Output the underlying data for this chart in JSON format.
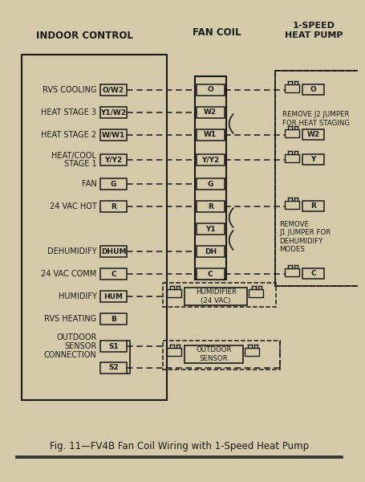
{
  "title": "Fig. 11—FV4B Fan Coil Wiring with 1-Speed Heat Pump",
  "header_indoor": "INDOOR CONTROL",
  "header_fan": "FAN COIL",
  "header_hp": "1-SPEED\nHEAT PUMP",
  "bg_color": "#d4c9a8",
  "box_color": "#1a1a1a",
  "text_color": "#1a1a1a",
  "indoor_rows": [
    {
      "label": "RVS COOLING",
      "term": "O/W2"
    },
    {
      "label": "HEAT STAGE 3",
      "term": "Y1/W2"
    },
    {
      "label": "HEAT STAGE 2",
      "term": "W/W1"
    },
    {
      "label": "HEAT/COOL\nSTAGE 1",
      "term": "Y/Y2"
    },
    {
      "label": "FAN",
      "term": "G"
    },
    {
      "label": "24 VAC HOT",
      "term": "R"
    },
    {
      "label": "DEHUMIDIFY",
      "term": "DHUM"
    },
    {
      "label": "24 VAC COMM",
      "term": "C"
    },
    {
      "label": "HUMIDIFY",
      "term": "HUM"
    },
    {
      "label": "RVS HEATING",
      "term": "B"
    },
    {
      "label": "OUTDOOR\nSENSOR\nCONNECTION",
      "term": "S1"
    },
    {
      "label": "",
      "term": "S2"
    }
  ],
  "fan_coil_terms": [
    "O",
    "W2",
    "W1",
    "Y/Y2",
    "G",
    "R",
    "Y1",
    "DH",
    "C"
  ],
  "hp_terms": [
    "O",
    "W2",
    "Y",
    "R",
    "C"
  ],
  "note_j2": "REMOVE J2 JUMPER\nFOR HEAT STAGING",
  "note_j1": "REMOVE\nJ1 JUMPER FOR\nDEHUMIDIFY\nMODES"
}
